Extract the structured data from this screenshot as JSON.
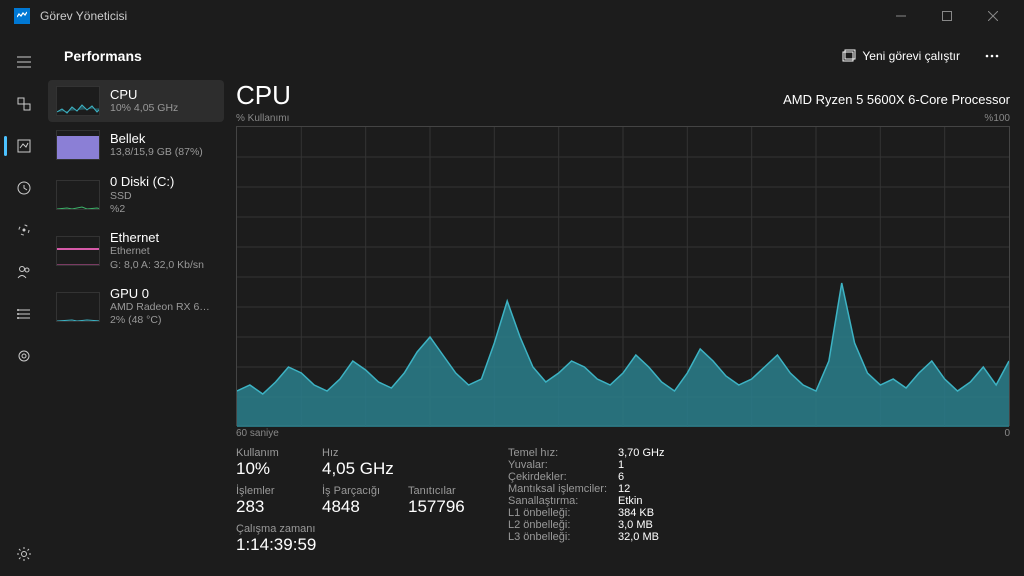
{
  "colors": {
    "accent": "#3db3c4",
    "accent_fill": "#2a7f8c",
    "mem": "#8b7fd6",
    "disk": "#3db36a",
    "eth": "#d65aa8",
    "gpu": "#3db3c4",
    "grid": "#333333",
    "border": "#444444"
  },
  "titlebar": {
    "title": "Görev Yöneticisi"
  },
  "header": {
    "title": "Performans",
    "new_task": "Yeni görevi çalıştır"
  },
  "side": {
    "items": [
      {
        "name": "CPU",
        "sub1": "10% 4,05 GHz"
      },
      {
        "name": "Bellek",
        "sub1": "13,8/15,9 GB (87%)"
      },
      {
        "name": "0 Diski (C:)",
        "sub1": "SSD",
        "sub2": "%2"
      },
      {
        "name": "Ethernet",
        "sub1": "Ethernet",
        "sub2": "G: 8,0 A: 32,0 Kb/sn"
      },
      {
        "name": "GPU 0",
        "sub1": "AMD Radeon RX 6…",
        "sub2": "2% (48 °C)"
      }
    ]
  },
  "detail": {
    "title": "CPU",
    "subtitle": "AMD Ryzen 5 5600X 6-Core Processor",
    "y_label": "% Kullanımı",
    "y_max": "%100",
    "x_left": "60 saniye",
    "x_right": "0"
  },
  "chart": {
    "type": "area",
    "xlim": [
      0,
      60
    ],
    "ylim": [
      0,
      100
    ],
    "grid_cols": 12,
    "grid_rows": 10,
    "stroke": "#3db3c4",
    "fill": "#2a7f8c",
    "fill_opacity": 0.85,
    "values": [
      12,
      14,
      11,
      15,
      20,
      18,
      14,
      12,
      16,
      22,
      19,
      15,
      13,
      18,
      25,
      30,
      24,
      18,
      14,
      16,
      28,
      42,
      30,
      20,
      15,
      18,
      22,
      20,
      16,
      14,
      18,
      24,
      20,
      15,
      12,
      18,
      26,
      22,
      17,
      14,
      16,
      20,
      24,
      18,
      14,
      12,
      22,
      48,
      28,
      18,
      14,
      16,
      13,
      18,
      22,
      16,
      12,
      15,
      20,
      14,
      22
    ]
  },
  "stats": {
    "left": [
      [
        {
          "label": "Kullanım",
          "val": "10%"
        },
        {
          "label": "Hız",
          "val": "4,05 GHz"
        }
      ],
      [
        {
          "label": "İşlemler",
          "val": "283"
        },
        {
          "label": "İş Parçacığı",
          "val": "4848"
        },
        {
          "label": "Tanıtıcılar",
          "val": "157796"
        }
      ],
      [
        {
          "label": "Çalışma zamanı",
          "val": "1:14:39:59"
        }
      ]
    ],
    "right": [
      {
        "k": "Temel hız:",
        "v": "3,70 GHz"
      },
      {
        "k": "Yuvalar:",
        "v": "1"
      },
      {
        "k": "Çekirdekler:",
        "v": "6"
      },
      {
        "k": "Mantıksal işlemciler:",
        "v": "12"
      },
      {
        "k": "Sanallaştırma:",
        "v": "Etkin"
      },
      {
        "k": "L1 önbelleği:",
        "v": "384 KB"
      },
      {
        "k": "L2 önbelleği:",
        "v": "3,0 MB"
      },
      {
        "k": "L3 önbelleği:",
        "v": "32,0 MB"
      }
    ]
  }
}
